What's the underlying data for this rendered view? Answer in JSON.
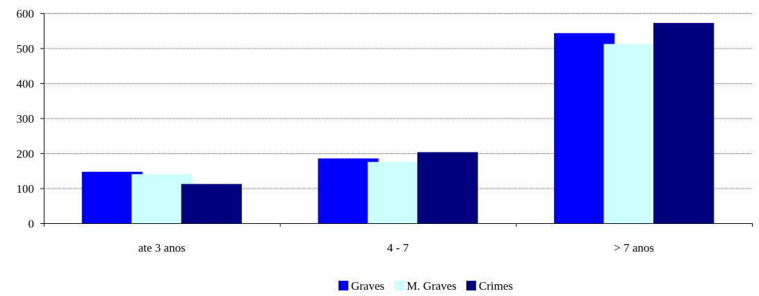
{
  "chart_data": {
    "type": "bar",
    "categories": [
      "ate 3 anos",
      "4 - 7",
      "> 7 anos"
    ],
    "series": [
      {
        "name": "Graves",
        "values": [
          147,
          185,
          543
        ],
        "color": "#0000FF"
      },
      {
        "name": "M. Graves",
        "values": [
          140,
          175,
          512
        ],
        "color": "#CCFFFF"
      },
      {
        "name": "Crimes",
        "values": [
          112,
          203,
          572
        ],
        "color": "#000080"
      }
    ],
    "ylim": [
      0,
      600
    ],
    "yticks": [
      0,
      100,
      200,
      300,
      400,
      500,
      600
    ],
    "grid": true,
    "legend_position": "bottom"
  }
}
